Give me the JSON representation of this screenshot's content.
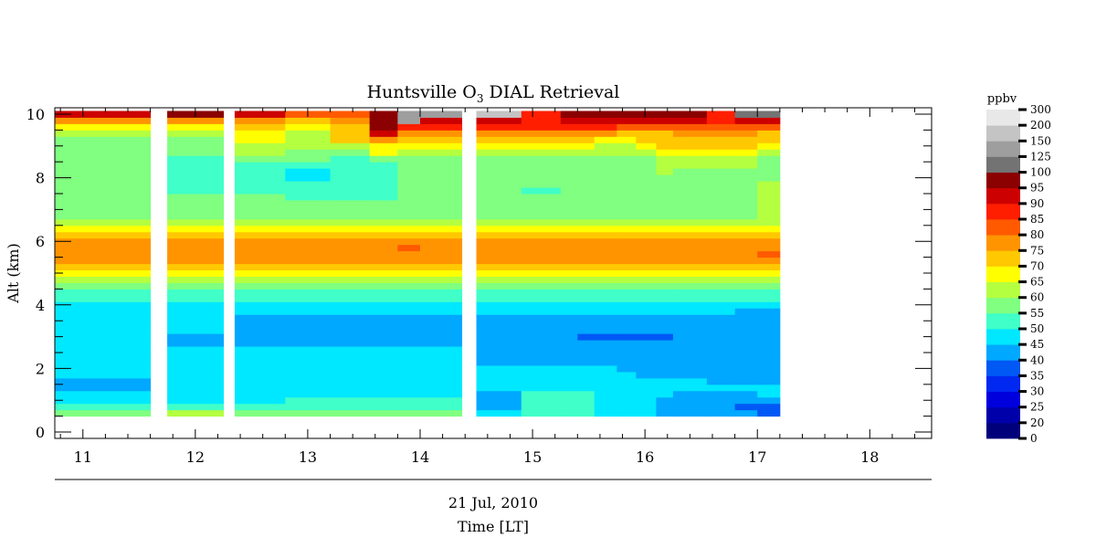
{
  "chart_data": {
    "type": "heatmap",
    "title_main": "Huntsville O",
    "title_sub": "3",
    "title_rest": " DIAL Retrieval",
    "ylabel": "Alt (km)",
    "xlabel": "Time [LT]",
    "date_label": "21 Jul, 2010",
    "xlim": [
      10.75,
      18.55
    ],
    "ylim": [
      -0.2,
      10.2
    ],
    "xticks": [
      11,
      12,
      13,
      14,
      15,
      16,
      17,
      18
    ],
    "yticks": [
      0,
      2,
      4,
      6,
      8,
      10
    ],
    "altitudes_km": [
      0.6,
      0.8,
      1.0,
      1.2,
      1.4,
      1.6,
      1.8,
      2.0,
      2.2,
      2.4,
      2.6,
      2.8,
      3.0,
      3.2,
      3.4,
      3.6,
      3.8,
      4.0,
      4.2,
      4.4,
      4.6,
      4.8,
      5.0,
      5.2,
      5.4,
      5.6,
      5.8,
      6.0,
      6.2,
      6.4,
      6.6,
      6.8,
      7.0,
      7.2,
      7.4,
      7.6,
      7.8,
      8.0,
      8.2,
      8.4,
      8.6,
      8.8,
      9.0,
      9.2,
      9.4,
      9.6,
      9.8,
      10.0
    ],
    "profiles": [
      {
        "time": 10.75,
        "ozone_ppbv": [
          57,
          50,
          48,
          45,
          40,
          40,
          46,
          46,
          46,
          46,
          46,
          46,
          46,
          46,
          46,
          46,
          46,
          48,
          50,
          53,
          56,
          62,
          66,
          71,
          76,
          76,
          76,
          76,
          71,
          66,
          61,
          59,
          59,
          57,
          56,
          56,
          56,
          57,
          57,
          57,
          59,
          56,
          56,
          56,
          60,
          67,
          78,
          90
        ]
      },
      {
        "time": 11.75,
        "ozone_ppbv": [
          62,
          52,
          48,
          46,
          46,
          46,
          46,
          46,
          46,
          46,
          46,
          42,
          42,
          46,
          46,
          46,
          46,
          47,
          50,
          53,
          57,
          62,
          67,
          72,
          76,
          76,
          76,
          76,
          71,
          67,
          62,
          59,
          59,
          57,
          56,
          52,
          52,
          52,
          52,
          52,
          53,
          57,
          59,
          59,
          62,
          66,
          76,
          95
        ]
      },
      {
        "time": 12.35,
        "ozone_ppbv": [
          56,
          51,
          48,
          46,
          46,
          46,
          46,
          46,
          46,
          46,
          46,
          42,
          42,
          42,
          42,
          42,
          46,
          47,
          50,
          53,
          57,
          62,
          67,
          72,
          76,
          76,
          76,
          76,
          72,
          67,
          62,
          59,
          59,
          57,
          55,
          52,
          52,
          52,
          50,
          52,
          56,
          60,
          64,
          67,
          68,
          70,
          76,
          90
        ]
      },
      {
        "time": 12.8,
        "ozone_ppbv": [
          55,
          52,
          50,
          48,
          47,
          46,
          46,
          46,
          46,
          46,
          46,
          42,
          42,
          42,
          42,
          42,
          46,
          47,
          50,
          53,
          57,
          62,
          67,
          72,
          76,
          76,
          76,
          76,
          72,
          67,
          62,
          59,
          59,
          56,
          52,
          50,
          50,
          46,
          46,
          52,
          55,
          58,
          60,
          62,
          64,
          66,
          72,
          80
        ]
      },
      {
        "time": 13.2,
        "ozone_ppbv": [
          55,
          52,
          50,
          48,
          47,
          46,
          46,
          46,
          46,
          46,
          46,
          42,
          42,
          42,
          42,
          42,
          46,
          47,
          50,
          53,
          57,
          62,
          67,
          72,
          76,
          76,
          76,
          76,
          72,
          67,
          62,
          59,
          59,
          56,
          52,
          50,
          50,
          50,
          50,
          50,
          52,
          55,
          62,
          70,
          72,
          74,
          78,
          82
        ]
      },
      {
        "time": 13.55,
        "ozone_ppbv": [
          55,
          52,
          50,
          48,
          47,
          46,
          46,
          46,
          46,
          46,
          46,
          42,
          42,
          42,
          42,
          42,
          46,
          47,
          50,
          53,
          57,
          62,
          67,
          72,
          76,
          76,
          76,
          76,
          72,
          67,
          62,
          59,
          59,
          56,
          52,
          50,
          50,
          50,
          50,
          50,
          58,
          65,
          68,
          78,
          90,
          95,
          95,
          99
        ]
      },
      {
        "time": 13.8,
        "ozone_ppbv": [
          55,
          52,
          50,
          48,
          47,
          46,
          46,
          46,
          46,
          46,
          46,
          42,
          42,
          42,
          42,
          42,
          46,
          47,
          50,
          53,
          57,
          62,
          67,
          72,
          76,
          76,
          80,
          76,
          72,
          67,
          62,
          59,
          59,
          56,
          55,
          55,
          55,
          55,
          55,
          55,
          58,
          62,
          68,
          72,
          78,
          88,
          130,
          130
        ]
      },
      {
        "time": 14.0,
        "ozone_ppbv": [
          55,
          52,
          50,
          48,
          47,
          46,
          46,
          46,
          46,
          46,
          46,
          42,
          42,
          42,
          42,
          42,
          46,
          47,
          50,
          53,
          57,
          62,
          67,
          72,
          76,
          76,
          76,
          76,
          72,
          67,
          62,
          59,
          59,
          56,
          55,
          55,
          55,
          55,
          55,
          55,
          58,
          62,
          68,
          72,
          78,
          85,
          92,
          130
        ]
      },
      {
        "time": 14.5,
        "ozone_ppbv": [
          46,
          42,
          42,
          44,
          46,
          46,
          46,
          46,
          42,
          42,
          42,
          42,
          42,
          42,
          42,
          42,
          46,
          47,
          50,
          53,
          57,
          62,
          67,
          72,
          76,
          76,
          76,
          76,
          72,
          67,
          62,
          59,
          59,
          56,
          56,
          56,
          56,
          56,
          56,
          56,
          58,
          62,
          68,
          72,
          78,
          85,
          92,
          150
        ]
      },
      {
        "time": 14.9,
        "ozone_ppbv": [
          50,
          50,
          50,
          50,
          48,
          46,
          46,
          46,
          42,
          42,
          42,
          42,
          42,
          42,
          42,
          42,
          46,
          47,
          50,
          53,
          57,
          62,
          67,
          72,
          76,
          76,
          76,
          76,
          72,
          67,
          62,
          59,
          59,
          56,
          56,
          50,
          56,
          56,
          56,
          56,
          58,
          62,
          68,
          72,
          78,
          86,
          88,
          88
        ]
      },
      {
        "time": 15.25,
        "ozone_ppbv": [
          50,
          50,
          50,
          50,
          48,
          46,
          46,
          46,
          42,
          42,
          42,
          42,
          42,
          42,
          42,
          42,
          46,
          47,
          50,
          53,
          57,
          62,
          67,
          72,
          76,
          76,
          76,
          76,
          72,
          67,
          62,
          59,
          59,
          56,
          56,
          56,
          56,
          56,
          56,
          56,
          58,
          62,
          68,
          72,
          78,
          86,
          92,
          96
        ]
      },
      {
        "time": 15.4,
        "ozone_ppbv": [
          50,
          50,
          50,
          50,
          48,
          46,
          46,
          46,
          42,
          42,
          42,
          42,
          38,
          42,
          42,
          42,
          46,
          47,
          50,
          53,
          57,
          62,
          67,
          72,
          76,
          76,
          76,
          76,
          72,
          67,
          62,
          59,
          59,
          56,
          56,
          56,
          56,
          56,
          56,
          56,
          58,
          62,
          66,
          72,
          78,
          86,
          92,
          98
        ]
      },
      {
        "time": 15.55,
        "ozone_ppbv": [
          46,
          46,
          46,
          46,
          46,
          46,
          46,
          46,
          42,
          42,
          42,
          42,
          38,
          42,
          42,
          42,
          46,
          47,
          50,
          53,
          57,
          62,
          67,
          72,
          76,
          76,
          76,
          76,
          72,
          67,
          62,
          59,
          59,
          56,
          56,
          56,
          56,
          56,
          56,
          56,
          58,
          60,
          64,
          68,
          78,
          86,
          92,
          96
        ]
      },
      {
        "time": 15.75,
        "ozone_ppbv": [
          46,
          46,
          46,
          46,
          46,
          46,
          46,
          42,
          42,
          42,
          42,
          42,
          38,
          42,
          42,
          42,
          46,
          47,
          50,
          53,
          57,
          62,
          67,
          72,
          76,
          76,
          76,
          76,
          72,
          67,
          62,
          59,
          59,
          56,
          56,
          56,
          56,
          56,
          56,
          56,
          58,
          60,
          64,
          66,
          72,
          80,
          90,
          96
        ]
      },
      {
        "time": 15.92,
        "ozone_ppbv": [
          46,
          46,
          46,
          46,
          46,
          46,
          42,
          42,
          42,
          42,
          42,
          42,
          38,
          42,
          42,
          42,
          46,
          47,
          50,
          53,
          57,
          62,
          67,
          72,
          76,
          76,
          76,
          76,
          72,
          67,
          62,
          59,
          59,
          56,
          56,
          56,
          56,
          56,
          56,
          56,
          58,
          62,
          66,
          70,
          72,
          82,
          90,
          95
        ]
      },
      {
        "time": 16.1,
        "ozone_ppbv": [
          42,
          42,
          42,
          46,
          46,
          46,
          42,
          42,
          42,
          42,
          42,
          42,
          38,
          42,
          42,
          42,
          46,
          47,
          50,
          53,
          57,
          62,
          67,
          72,
          76,
          76,
          76,
          76,
          72,
          67,
          62,
          59,
          59,
          56,
          56,
          56,
          56,
          56,
          60,
          60,
          62,
          65,
          70,
          70,
          72,
          82,
          90,
          96
        ]
      },
      {
        "time": 16.25,
        "ozone_ppbv": [
          42,
          42,
          42,
          42,
          46,
          46,
          42,
          42,
          42,
          42,
          42,
          42,
          42,
          42,
          42,
          42,
          46,
          47,
          50,
          53,
          57,
          62,
          67,
          72,
          76,
          76,
          76,
          76,
          72,
          67,
          62,
          59,
          59,
          56,
          56,
          56,
          56,
          56,
          58,
          60,
          64,
          68,
          72,
          74,
          76,
          84,
          90,
          96
        ]
      },
      {
        "time": 16.55,
        "ozone_ppbv": [
          42,
          42,
          42,
          42,
          46,
          42,
          42,
          42,
          42,
          42,
          42,
          42,
          42,
          42,
          42,
          42,
          46,
          47,
          50,
          53,
          57,
          62,
          67,
          72,
          76,
          76,
          76,
          76,
          72,
          67,
          62,
          59,
          59,
          56,
          56,
          56,
          56,
          56,
          56,
          60,
          62,
          68,
          70,
          74,
          76,
          82,
          86,
          86
        ]
      },
      {
        "time": 16.8,
        "ozone_ppbv": [
          42,
          38,
          42,
          42,
          46,
          42,
          42,
          42,
          42,
          42,
          42,
          42,
          42,
          42,
          42,
          42,
          42,
          47,
          50,
          53,
          57,
          62,
          67,
          72,
          76,
          76,
          76,
          76,
          72,
          67,
          62,
          59,
          59,
          56,
          56,
          56,
          56,
          56,
          56,
          60,
          62,
          68,
          70,
          74,
          78,
          82,
          90,
          100
        ]
      },
      {
        "time": 17.0,
        "ozone_ppbv": [
          38,
          38,
          42,
          46,
          46,
          42,
          42,
          42,
          42,
          42,
          42,
          42,
          42,
          42,
          42,
          42,
          42,
          47,
          50,
          53,
          57,
          62,
          67,
          72,
          76,
          80,
          76,
          76,
          72,
          67,
          62,
          62,
          60,
          60,
          60,
          60,
          60,
          56,
          56,
          56,
          58,
          62,
          68,
          70,
          74,
          82,
          90,
          100
        ]
      }
    ],
    "profile_end_time": 17.2,
    "colorbar": {
      "label": "ppbv",
      "levels": [
        0,
        20,
        25,
        30,
        35,
        40,
        45,
        50,
        55,
        60,
        65,
        70,
        75,
        80,
        85,
        90,
        95,
        100,
        125,
        150,
        200,
        300
      ],
      "colors": [
        "#00007a",
        "#0000aa",
        "#0000dd",
        "#0028f0",
        "#0058f5",
        "#00a8ff",
        "#00e8ff",
        "#40ffc8",
        "#80ff80",
        "#b4ff40",
        "#ffff00",
        "#ffc800",
        "#ff9400",
        "#ff5a00",
        "#ff1e00",
        "#cc0000",
        "#8b0000",
        "#737373",
        "#9e9e9e",
        "#c4c4c4",
        "#e8e8e8"
      ]
    }
  }
}
